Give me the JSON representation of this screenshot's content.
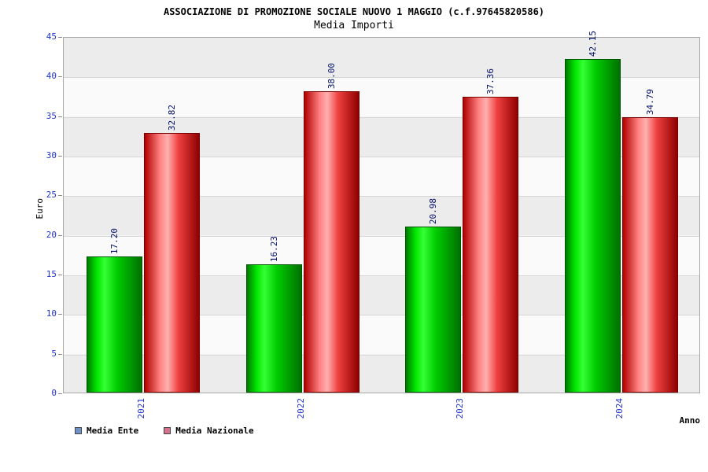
{
  "header": {
    "title": "ASSOCIAZIONE DI PROMOZIONE SOCIALE NUOVO 1 MAGGIO (c.f.97645820586)",
    "subtitle": "Media Importi"
  },
  "axes": {
    "y_label": "Euro",
    "x_label": "Anno",
    "y_ticks": [
      0,
      5,
      10,
      15,
      20,
      25,
      30,
      35,
      40,
      45
    ]
  },
  "legend": [
    {
      "label": "Media Ente",
      "swatch_color": "#7191c6"
    },
    {
      "label": "Media Nazionale",
      "swatch_color": "#d4718c"
    }
  ],
  "colors": {
    "tick_label": "#2233cc",
    "value_label": "#000e66"
  },
  "chart_data": {
    "type": "bar",
    "title": "Media Importi",
    "xlabel": "Anno",
    "ylabel": "Euro",
    "ylim": [
      0,
      45
    ],
    "grid": true,
    "legend_position": "bottom-left",
    "categories": [
      "2021",
      "2022",
      "2023",
      "2024"
    ],
    "series": [
      {
        "name": "Media Ente",
        "values": [
          17.2,
          16.23,
          20.98,
          42.15
        ],
        "labels": [
          "17.20",
          "16.23",
          "20.98",
          "42.15"
        ],
        "gradient": "linear-gradient(90deg,#007a00 0%,#00e800 18%,#35ff35 32%,#00cc00 55%,#007000 100%)",
        "border": "#005500"
      },
      {
        "name": "Media Nazionale",
        "values": [
          32.82,
          38.0,
          37.36,
          34.79
        ],
        "labels": [
          "32.82",
          "38.00",
          "37.36",
          "34.79"
        ],
        "gradient": "linear-gradient(90deg,#b00000 0%,#ff8080 28%,#ffb0b0 42%,#f04040 62%,#8f0000 100%)",
        "border": "#7a0000"
      }
    ]
  }
}
